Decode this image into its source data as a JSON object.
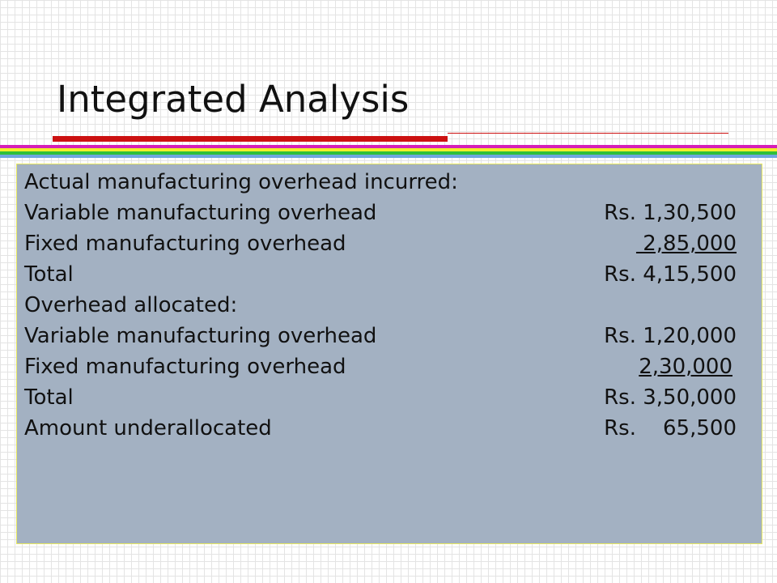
{
  "header": {
    "title": "Integrated Analysis"
  },
  "rows": [
    {
      "label": "Actual manufacturing overhead incurred:"
    },
    {
      "label": "Variable manufacturing overhead",
      "amount": "Rs. 1,30,500"
    },
    {
      "label": "Fixed manufacturing overhead",
      "amount": " 2,85,000"
    },
    {
      "label": "Total",
      "amount": "Rs. 4,15,500"
    },
    {
      "label": "Overhead allocated:"
    },
    {
      "label": "Variable manufacturing overhead",
      "amount": "Rs. 1,20,000"
    },
    {
      "label": "Fixed manufacturing overhead",
      "amount": "2,30,000"
    },
    {
      "label": "Total",
      "amount": "Rs. 3,50,000"
    },
    {
      "label": "Amount underallocated",
      "amount": "Rs.    65,500"
    }
  ]
}
